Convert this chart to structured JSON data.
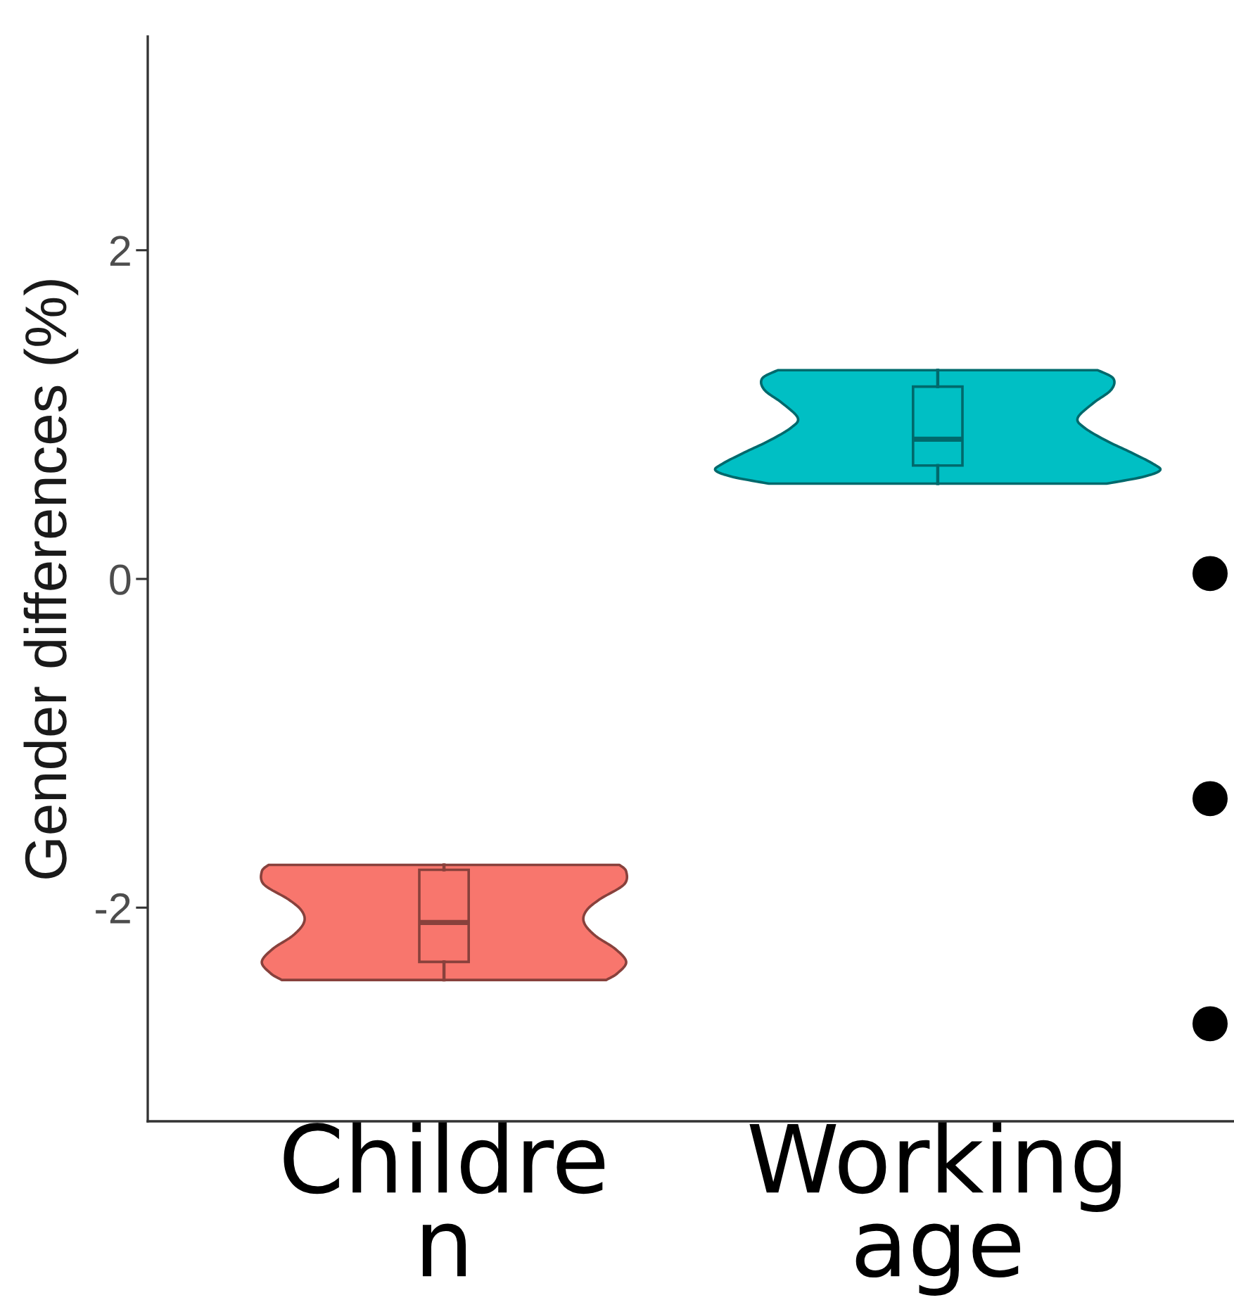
{
  "chart_data": {
    "type": "box",
    "categories": [
      "Childre\nn",
      "Working\nage"
    ],
    "ylabel": "Gender differences (%)",
    "ylim": [
      -3.3,
      3.3
    ],
    "yticks": [
      -2,
      0,
      2
    ],
    "colors": [
      "#f8766d",
      "#00bfc4"
    ],
    "boxes": [
      {
        "low": -2.44,
        "q1": -2.33,
        "median": -2.09,
        "q3": -1.77,
        "high": -1.74
      },
      {
        "low": 0.58,
        "q1": 0.69,
        "median": 0.85,
        "q3": 1.17,
        "high": 1.27
      }
    ],
    "annotations": [
      "•",
      "•",
      "•"
    ]
  }
}
